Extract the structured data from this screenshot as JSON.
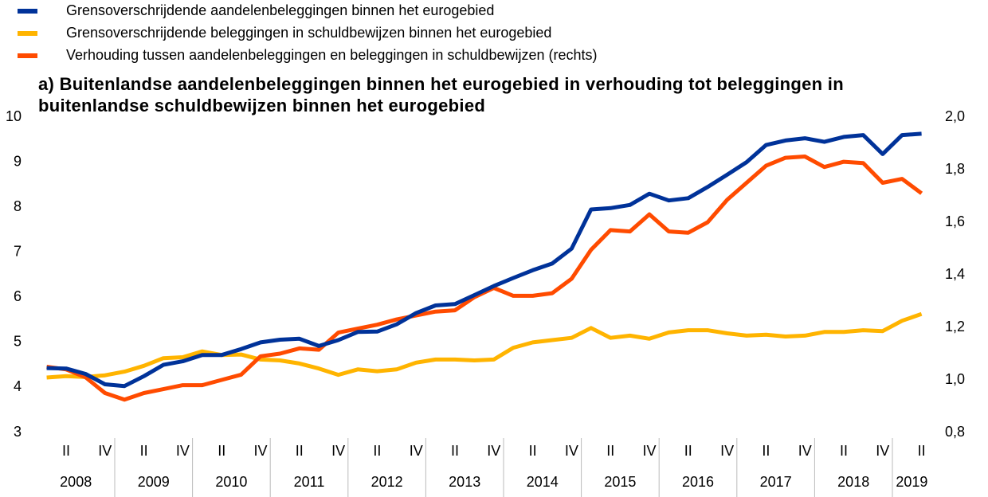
{
  "chart_data": {
    "type": "line",
    "title": "a) Buitenlandse aandelenbeleggingen binnen het eurogebied in verhouding tot beleggingen in buitenlandse schuldbewijzen binnen het eurogebied",
    "categories": [
      null,
      "II",
      null,
      "IV",
      null,
      "II",
      null,
      "IV",
      null,
      "II",
      null,
      "IV",
      null,
      "II",
      null,
      "IV",
      null,
      "II",
      null,
      "IV",
      null,
      "II",
      null,
      "IV",
      null,
      "II",
      null,
      "IV",
      null,
      "II",
      null,
      "IV",
      null,
      "II",
      null,
      "IV",
      null,
      "II",
      null,
      "IV",
      null,
      "II",
      null,
      "IV",
      null,
      "II"
    ],
    "years": [
      "2008",
      "2009",
      "2010",
      "2011",
      "2012",
      "2013",
      "2014",
      "2015",
      "2016",
      "2017",
      "2018",
      "2019"
    ],
    "ylim": [
      3,
      10
    ],
    "yticks": [
      3,
      4,
      5,
      6,
      7,
      8,
      9,
      10
    ],
    "y2lim": [
      0.8,
      2.0
    ],
    "y2ticks": [
      {
        "value": 0.8,
        "label": "0,8"
      },
      {
        "value": 1.0,
        "label": "1,0"
      },
      {
        "value": 1.2,
        "label": "1,2"
      },
      {
        "value": 1.4,
        "label": "1,4"
      },
      {
        "value": 1.6,
        "label": "1,6"
      },
      {
        "value": 1.8,
        "label": "1,8"
      },
      {
        "value": 2.0,
        "label": "2,0"
      }
    ],
    "grid": false,
    "series": [
      {
        "name": "Grensoverschrijdende aandelenbeleggingen binnen het eurogebied",
        "color": "#003299",
        "values": [
          4.43,
          4.42,
          4.3,
          4.07,
          4.03,
          4.25,
          4.5,
          4.58,
          4.72,
          4.72,
          4.85,
          5.0,
          5.06,
          5.08,
          4.92,
          5.05,
          5.23,
          5.24,
          5.4,
          5.65,
          5.82,
          5.85,
          6.05,
          6.25,
          6.43,
          6.6,
          6.75,
          7.08,
          7.95,
          7.98,
          8.05,
          8.3,
          8.15,
          8.2,
          8.45,
          8.72,
          9.0,
          9.38,
          9.48,
          9.53,
          9.45,
          9.56,
          9.6,
          9.18,
          9.6,
          9.63
        ]
      },
      {
        "name": "Grensoverschrijdende beleggingen in schuldbewijzen binnen het eurogebied",
        "color": "#ffb400",
        "values": [
          4.22,
          4.25,
          4.23,
          4.27,
          4.35,
          4.48,
          4.65,
          4.67,
          4.8,
          4.72,
          4.73,
          4.62,
          4.6,
          4.53,
          4.42,
          4.28,
          4.4,
          4.36,
          4.4,
          4.55,
          4.62,
          4.62,
          4.6,
          4.62,
          4.88,
          5.0,
          5.05,
          5.1,
          5.32,
          5.1,
          5.15,
          5.08,
          5.22,
          5.27,
          5.27,
          5.2,
          5.15,
          5.17,
          5.13,
          5.15,
          5.23,
          5.23,
          5.27,
          5.25,
          5.48,
          5.63
        ]
      },
      {
        "name": "Verhouding tussen aandelenbeleggingen en beleggingen in schuldbewijzen (rechts)",
        "color": "#ff4b00",
        "axis": "y2",
        "values": [
          1.05,
          1.04,
          1.01,
          0.95,
          0.925,
          0.95,
          0.965,
          0.98,
          0.98,
          1.0,
          1.02,
          1.09,
          1.1,
          1.12,
          1.115,
          1.18,
          1.195,
          1.21,
          1.23,
          1.245,
          1.26,
          1.265,
          1.315,
          1.35,
          1.32,
          1.32,
          1.33,
          1.385,
          1.495,
          1.57,
          1.565,
          1.63,
          1.565,
          1.56,
          1.6,
          1.685,
          1.75,
          1.815,
          1.845,
          1.85,
          1.81,
          1.83,
          1.825,
          1.75,
          1.765,
          1.71
        ]
      }
    ]
  }
}
